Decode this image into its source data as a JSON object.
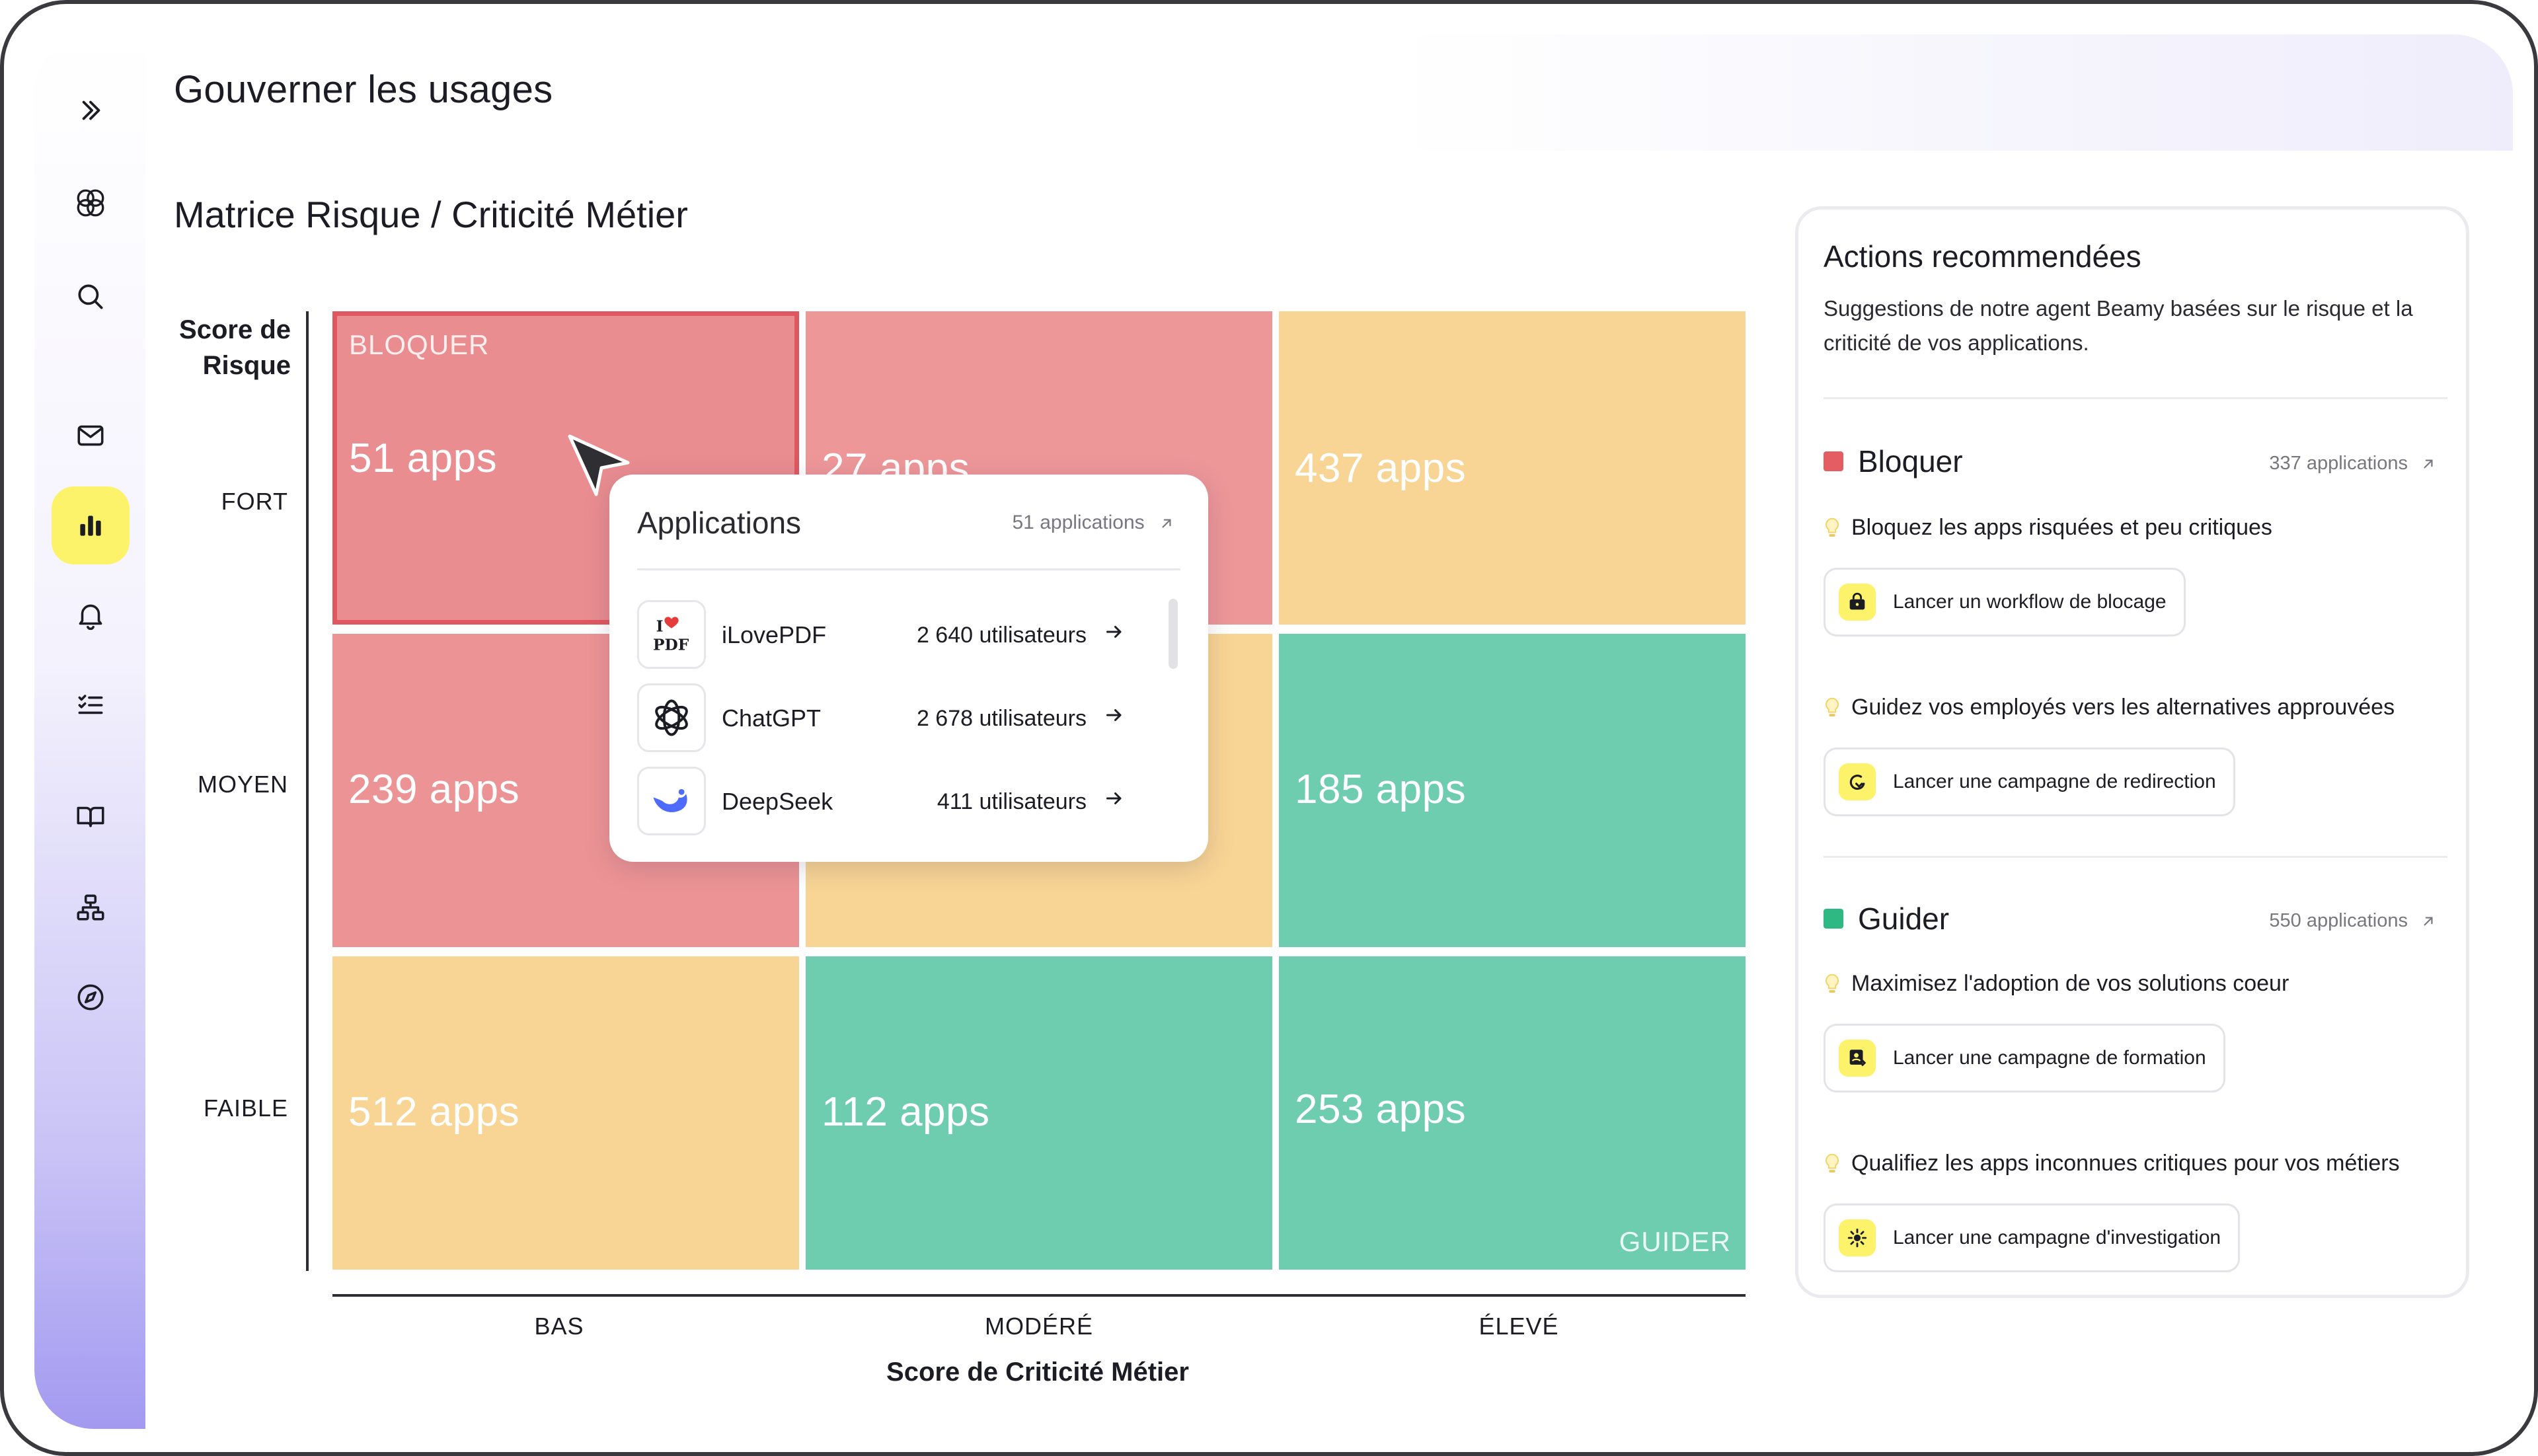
{
  "header": {
    "title": "Gouverner les usages"
  },
  "matrix": {
    "title": "Matrice Risque / Criticité Métier",
    "y_axis_label_line1": "Score de",
    "y_axis_label_line2": "Risque",
    "y_ticks": [
      "FORT",
      "MOYEN",
      "FAIBLE"
    ],
    "x_ticks": [
      "BAS",
      "MODÉRÉ",
      "ÉLEVÉ"
    ],
    "x_axis_label": "Score de Criticité Métier",
    "corner_top_left": "BLOQUER",
    "corner_bottom_right": "GUIDER",
    "cells": {
      "fort_bas": "51 apps",
      "fort_modere": "27 apps",
      "fort_eleve": "437 apps",
      "moyen_bas": "239 apps",
      "moyen_modere": "",
      "moyen_eleve": "185 apps",
      "faible_bas": "512 apps",
      "faible_modere": "112 apps",
      "faible_eleve": "253 apps"
    }
  },
  "popup": {
    "title": "Applications",
    "count": "51 applications",
    "rows": [
      {
        "name": "iLovePDF",
        "users": "2 640  utilisateurs"
      },
      {
        "name": "ChatGPT",
        "users": "2 678 utilisateurs"
      },
      {
        "name": "DeepSeek",
        "users": "411 utilisateurs"
      }
    ]
  },
  "panel": {
    "title": "Actions recommendées",
    "subtitle": "Suggestions de notre agent Beamy basées sur le risque et la criticité de vos applications.",
    "sections": [
      {
        "name": "Bloquer",
        "count": "337 applications",
        "color": "#e35d63",
        "items": [
          {
            "tip": "Bloquez les apps risquées et peu critiques",
            "button": "Lancer un workflow de blocage"
          },
          {
            "tip": "Guidez vos employés vers les alternatives approuvées",
            "button": "Lancer une campagne de redirection"
          }
        ]
      },
      {
        "name": "Guider",
        "count": "550 applications",
        "color": "#2fb982",
        "items": [
          {
            "tip": "Maximisez l'adoption de vos solutions coeur",
            "button": "Lancer une campagne de formation"
          },
          {
            "tip": "Qualifiez les apps inconnues critiques pour vos métiers",
            "button": "Lancer une campagne d'investigation"
          }
        ]
      }
    ]
  },
  "colors": {
    "accent_yellow": "#fdf36b",
    "cell_red": "#ec9495",
    "cell_yellow": "#f8d595",
    "cell_green": "#6ecdae"
  }
}
